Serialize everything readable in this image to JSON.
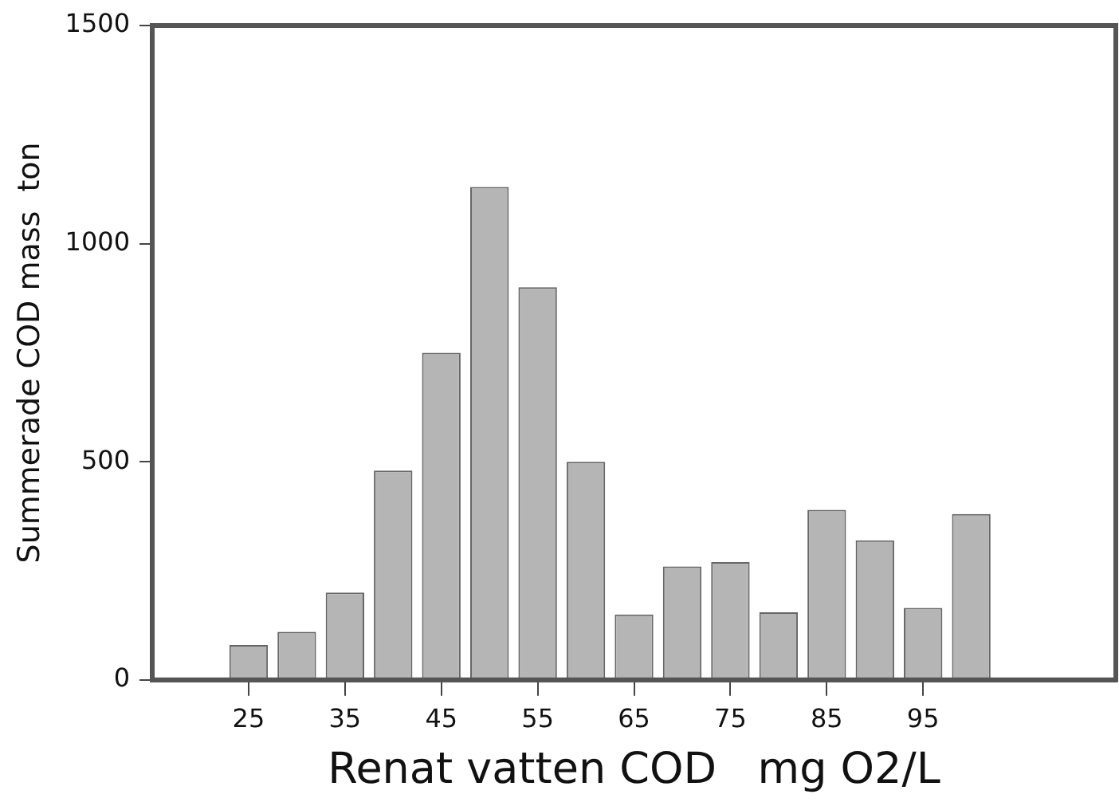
{
  "chart_data": {
    "type": "bar",
    "x": [
      25,
      30,
      35,
      40,
      45,
      50,
      55,
      60,
      65,
      70,
      75,
      80,
      85,
      90,
      95,
      100
    ],
    "values": [
      80,
      110,
      200,
      480,
      750,
      1130,
      900,
      500,
      150,
      260,
      270,
      155,
      390,
      320,
      165,
      380
    ],
    "color": "#b5b5b5",
    "xlim": [
      15,
      115
    ],
    "xticks": [
      25,
      35,
      45,
      55,
      65,
      75,
      85,
      95
    ],
    "ylim": [
      0,
      1500
    ],
    "yticks": [
      0,
      500,
      1000,
      1500
    ],
    "xlabel": "Renat vatten COD   mg O2/L",
    "ylabel": "Summerade COD mass  ton"
  }
}
